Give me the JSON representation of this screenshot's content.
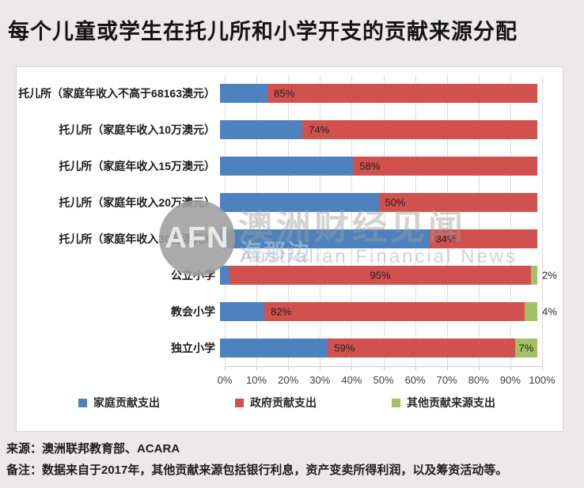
{
  "page": {
    "title": "每个儿童或学生在托儿所和小学开支的贡献来源分配",
    "source": "来源：澳洲联邦教育部、ACARA",
    "note": "备注：数据来自于2017年，其他贡献来源包括银行利息，资产变卖所得利润，以及筹资活动等。"
  },
  "watermark": {
    "logo": "AFN",
    "brand_cn": "澳洲财经见闻",
    "brand_sub": "海那边",
    "brand_en": "Australian Financial News"
  },
  "chart_data": {
    "type": "bar",
    "orientation": "horizontal",
    "stacked": true,
    "grid": true,
    "legend_position": "bottom",
    "xlim": [
      0,
      100
    ],
    "x_ticks": [
      "0%",
      "10%",
      "20%",
      "30%",
      "40%",
      "50%",
      "60%",
      "70%",
      "80%",
      "90%",
      "100%"
    ],
    "series_meta": [
      {
        "key": "family",
        "name": "家庭贡献支出",
        "color": "#4d82be"
      },
      {
        "key": "government",
        "name": "政府贡献支出",
        "color": "#d0514e"
      },
      {
        "key": "other",
        "name": "其他贡献来源支出",
        "color": "#a2c162"
      }
    ],
    "rows": [
      {
        "category": "托儿所（家庭年收入不高于68163澳元）",
        "family": 15,
        "government": 85,
        "other": 0,
        "labels": [
          {
            "series": "government",
            "text": "85%",
            "pos": "start"
          }
        ]
      },
      {
        "category": "托儿所（家庭年收入10万澳元）",
        "family": 26,
        "government": 74,
        "other": 0,
        "labels": [
          {
            "series": "government",
            "text": "74%",
            "pos": "start"
          }
        ]
      },
      {
        "category": "托儿所（家庭年收入15万澳元）",
        "family": 42,
        "government": 58,
        "other": 0,
        "labels": [
          {
            "series": "government",
            "text": "58%",
            "pos": "start"
          }
        ]
      },
      {
        "category": "托儿所（家庭年收入20万澳元）",
        "family": 50,
        "government": 50,
        "other": 0,
        "labels": [
          {
            "series": "government",
            "text": "50%",
            "pos": "start"
          }
        ]
      },
      {
        "category": "托儿所（家庭年收入30万澳元）",
        "family": 66,
        "government": 34,
        "other": 0,
        "labels": [
          {
            "series": "government",
            "text": "34%",
            "pos": "start"
          }
        ]
      },
      {
        "category": "公立小学",
        "family": 3,
        "government": 95,
        "other": 2,
        "labels": [
          {
            "series": "government",
            "text": "95%",
            "pos": "center"
          },
          {
            "series": "other",
            "text": "2%",
            "pos": "outside"
          }
        ]
      },
      {
        "category": "教会小学",
        "family": 14,
        "government": 82,
        "other": 4,
        "labels": [
          {
            "series": "government",
            "text": "82%",
            "pos": "start"
          },
          {
            "series": "other",
            "text": "4%",
            "pos": "outside"
          }
        ]
      },
      {
        "category": "独立小学",
        "family": 34,
        "government": 59,
        "other": 7,
        "labels": [
          {
            "series": "government",
            "text": "59%",
            "pos": "start"
          },
          {
            "series": "other",
            "text": "7%",
            "pos": "inside"
          }
        ]
      }
    ]
  }
}
